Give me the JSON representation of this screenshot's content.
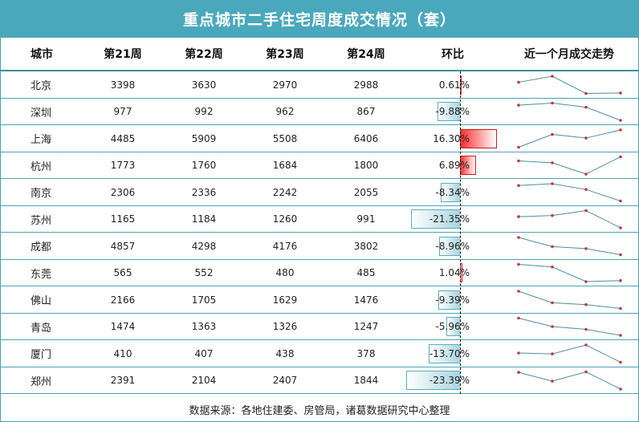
{
  "title": "重点城市二手住宅周度成交情况（套）",
  "headers": [
    "城市",
    "第21周",
    "第22周",
    "第23周",
    "第24周",
    "环比",
    "近一个月成交走势"
  ],
  "footer": "数据来源：各地住建委、房管局，诸葛数据研究中心整理",
  "colors": {
    "title_bg": "#4aa8bd",
    "grid": "#4aa3b5",
    "negative_bar": "#a8d4df",
    "positive_bar": "#ff2a2a",
    "spark_line": "#4a8fa0",
    "spark_dot": "#c0393b"
  },
  "chart_data": {
    "type": "table",
    "columns": [
      "城市",
      "第21周",
      "第22周",
      "第23周",
      "第24周",
      "环比"
    ],
    "rows": [
      {
        "city": "北京",
        "w21": 3398,
        "w22": 3630,
        "w23": 2970,
        "w24": 2988,
        "change": 0.61,
        "change_label": "0.61%"
      },
      {
        "city": "深圳",
        "w21": 977,
        "w22": 992,
        "w23": 962,
        "w24": 867,
        "change": -9.88,
        "change_label": "-9.88%"
      },
      {
        "city": "上海",
        "w21": 4485,
        "w22": 5909,
        "w23": 5508,
        "w24": 6406,
        "change": 16.3,
        "change_label": "16.30%"
      },
      {
        "city": "杭州",
        "w21": 1773,
        "w22": 1760,
        "w23": 1684,
        "w24": 1800,
        "change": 6.89,
        "change_label": "6.89%"
      },
      {
        "city": "南京",
        "w21": 2306,
        "w22": 2336,
        "w23": 2242,
        "w24": 2055,
        "change": -8.34,
        "change_label": "-8.34%"
      },
      {
        "city": "苏州",
        "w21": 1165,
        "w22": 1184,
        "w23": 1260,
        "w24": 991,
        "change": -21.35,
        "change_label": "-21.35%"
      },
      {
        "city": "成都",
        "w21": 4857,
        "w22": 4298,
        "w23": 4176,
        "w24": 3802,
        "change": -8.96,
        "change_label": "-8.96%"
      },
      {
        "city": "东莞",
        "w21": 565,
        "w22": 552,
        "w23": 480,
        "w24": 485,
        "change": 1.04,
        "change_label": "1.04%"
      },
      {
        "city": "佛山",
        "w21": 2166,
        "w22": 1705,
        "w23": 1629,
        "w24": 1476,
        "change": -9.39,
        "change_label": "-9.39%"
      },
      {
        "city": "青岛",
        "w21": 1474,
        "w22": 1363,
        "w23": 1326,
        "w24": 1247,
        "change": -5.96,
        "change_label": "-5.96%"
      },
      {
        "city": "厦门",
        "w21": 410,
        "w22": 407,
        "w23": 438,
        "w24": 378,
        "change": -13.7,
        "change_label": "-13.70%"
      },
      {
        "city": "郑州",
        "w21": 2391,
        "w22": 2104,
        "w23": 2407,
        "w24": 1844,
        "change": -23.39,
        "change_label": "-23.39%"
      }
    ]
  }
}
